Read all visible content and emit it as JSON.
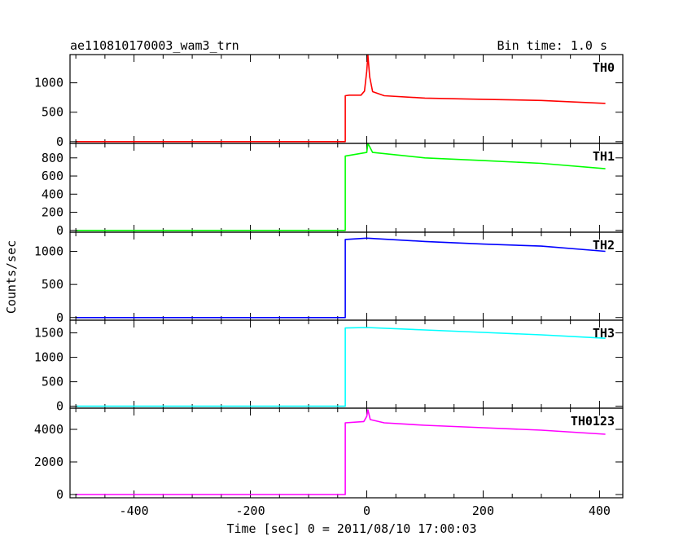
{
  "header": {
    "title": "ae110810170003_wam3_trn",
    "bin_time": "Bin time: 1.0 s"
  },
  "axes": {
    "ylabel": "Counts/sec",
    "xlabel": "Time [sec] 0 = 2011/08/10 17:00:03",
    "xlim": [
      -510,
      440
    ],
    "xticks_major": [
      -400,
      -200,
      0,
      200,
      400
    ]
  },
  "chart_data": [
    {
      "type": "line",
      "name": "TH0",
      "color": "#ff0000",
      "ylim": [
        -30,
        1480
      ],
      "yticks": [
        0,
        500,
        1000
      ],
      "points": [
        [
          -500,
          0
        ],
        [
          -37,
          0
        ],
        [
          -37,
          780
        ],
        [
          -30,
          790
        ],
        [
          -10,
          790
        ],
        [
          -4,
          860
        ],
        [
          0,
          1200
        ],
        [
          2,
          1470
        ],
        [
          5,
          1100
        ],
        [
          10,
          850
        ],
        [
          30,
          780
        ],
        [
          100,
          740
        ],
        [
          200,
          720
        ],
        [
          300,
          700
        ],
        [
          410,
          650
        ]
      ]
    },
    {
      "type": "line",
      "name": "TH1",
      "color": "#00ff00",
      "ylim": [
        -20,
        960
      ],
      "yticks": [
        0,
        200,
        400,
        600,
        800
      ],
      "points": [
        [
          -500,
          0
        ],
        [
          -37,
          0
        ],
        [
          -37,
          820
        ],
        [
          0,
          860
        ],
        [
          2,
          960
        ],
        [
          10,
          860
        ],
        [
          100,
          800
        ],
        [
          200,
          770
        ],
        [
          300,
          740
        ],
        [
          410,
          680
        ]
      ]
    },
    {
      "type": "line",
      "name": "TH2",
      "color": "#0000ff",
      "ylim": [
        -40,
        1290
      ],
      "yticks": [
        0,
        500,
        1000
      ],
      "points": [
        [
          -500,
          0
        ],
        [
          -37,
          0
        ],
        [
          -37,
          1180
        ],
        [
          0,
          1200
        ],
        [
          100,
          1150
        ],
        [
          200,
          1110
        ],
        [
          300,
          1080
        ],
        [
          410,
          1000
        ]
      ]
    },
    {
      "type": "line",
      "name": "TH3",
      "color": "#00ffff",
      "ylim": [
        -40,
        1760
      ],
      "yticks": [
        0,
        500,
        1000,
        1500
      ],
      "points": [
        [
          -500,
          0
        ],
        [
          -37,
          0
        ],
        [
          -37,
          1600
        ],
        [
          0,
          1610
        ],
        [
          100,
          1560
        ],
        [
          200,
          1510
        ],
        [
          300,
          1460
        ],
        [
          410,
          1390
        ]
      ]
    },
    {
      "type": "line",
      "name": "TH0123",
      "color": "#ff00ff",
      "ylim": [
        -200,
        5300
      ],
      "yticks": [
        0,
        2000,
        4000
      ],
      "points": [
        [
          -500,
          0
        ],
        [
          -37,
          0
        ],
        [
          -37,
          4400
        ],
        [
          -5,
          4480
        ],
        [
          0,
          4800
        ],
        [
          2,
          5200
        ],
        [
          6,
          4600
        ],
        [
          30,
          4400
        ],
        [
          100,
          4250
        ],
        [
          200,
          4100
        ],
        [
          300,
          3950
        ],
        [
          410,
          3700
        ]
      ]
    }
  ]
}
